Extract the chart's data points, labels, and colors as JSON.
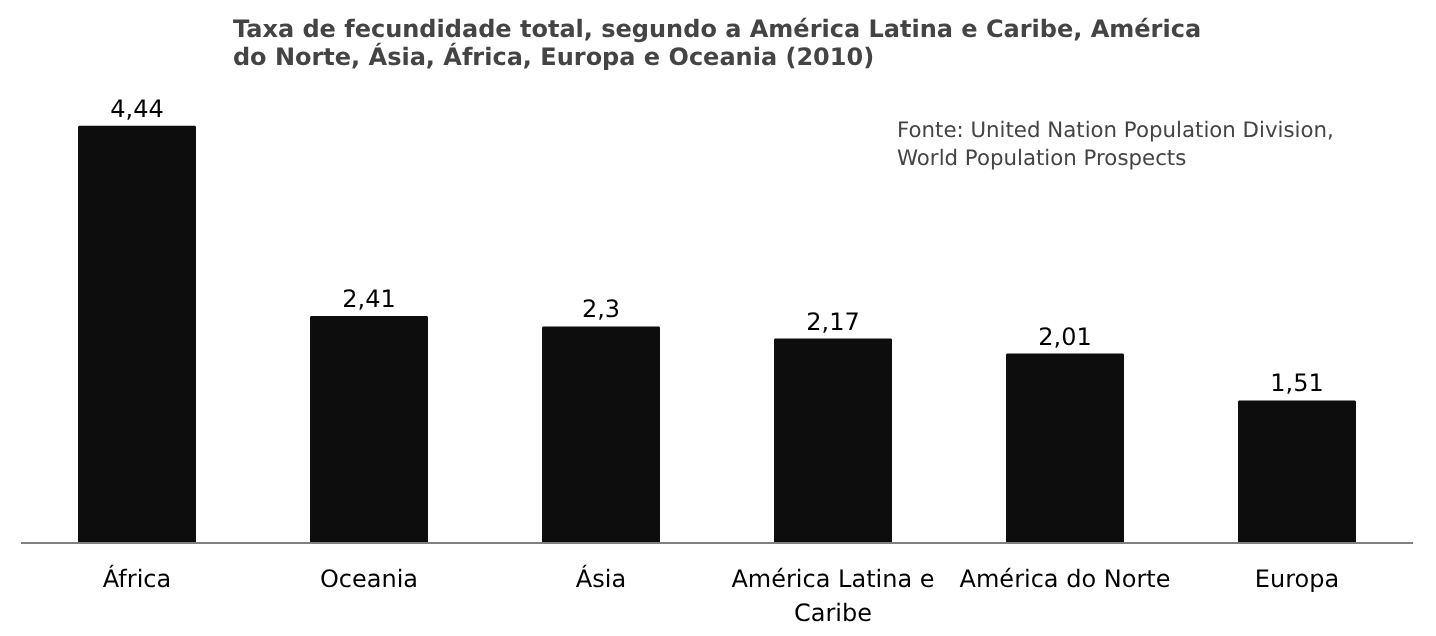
{
  "chart_data": {
    "type": "bar",
    "title": "Taxa de fecundidade total, segundo a América Latina e Caribe, América do Norte, Ásia, África, Europa e Oceania (2010)",
    "categories": [
      "África",
      "Oceania",
      "Ásia",
      "América Latina e Caribe",
      "América do Norte",
      "Europa"
    ],
    "values": [
      4.44,
      2.41,
      2.3,
      2.17,
      2.01,
      1.51
    ],
    "value_labels": [
      "4,44",
      "2,41",
      "2,3",
      "2,17",
      "2,01",
      "1,51"
    ],
    "color": "#0d0d0d",
    "grid": false,
    "tick_labels": "x",
    "annotations": [
      "Fonte: United Nation Population Division, World Population Prospects"
    ]
  }
}
